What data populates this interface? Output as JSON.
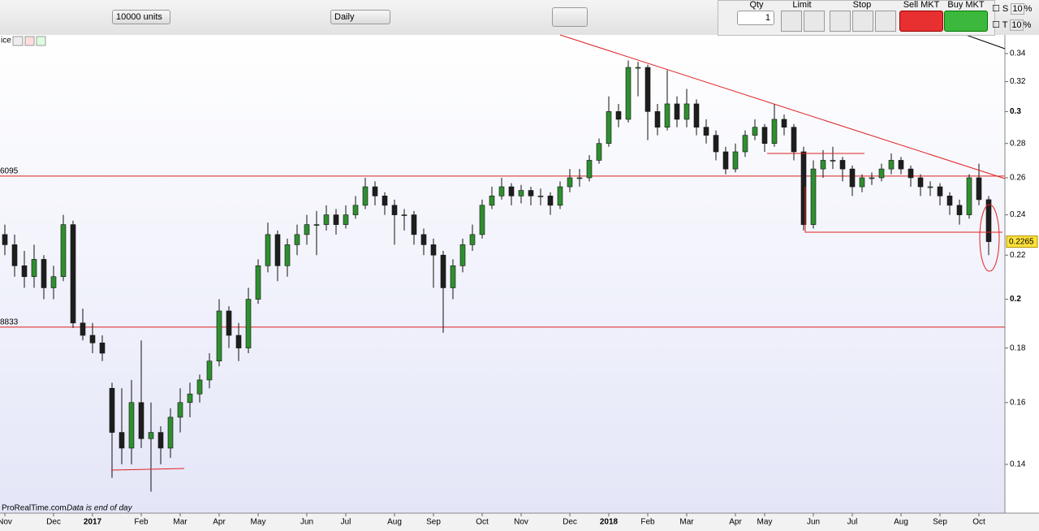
{
  "toolbar": {
    "units": "10000 units",
    "period": "Daily",
    "qty_label": "Qty",
    "qty": "1",
    "limit": "Limit",
    "stop": "Stop",
    "sell": "Sell MKT",
    "buy": "Buy MKT",
    "s": "S",
    "s_pct": "10",
    "t": "T",
    "t_pct": "10",
    "pct": "%",
    "left_title": "ice"
  },
  "footer": {
    "source": "ProRealTime.com",
    "note": "Data is end of day"
  },
  "chart_data": {
    "type": "candlestick",
    "log_scale": true,
    "grid": false,
    "up_color": "#2f8f2f",
    "down_color": "#1e1e1e",
    "ylim": [
      0.126,
      0.354
    ],
    "yticks": [
      0.14,
      0.16,
      0.18,
      0.2,
      0.22,
      0.24,
      0.26,
      0.28,
      0.3,
      0.32,
      0.34
    ],
    "hlines": [
      {
        "value": 0.26095,
        "label": "6095"
      },
      {
        "value": 0.18833,
        "label": "8833"
      }
    ],
    "categories": [
      "Nov",
      null,
      null,
      null,
      null,
      "Dec",
      null,
      null,
      null,
      "2017",
      null,
      null,
      null,
      null,
      "Feb",
      null,
      null,
      null,
      "Mar",
      null,
      null,
      null,
      "Apr",
      null,
      null,
      null,
      "May",
      null,
      null,
      null,
      null,
      "Jun",
      null,
      null,
      null,
      "Jul",
      null,
      null,
      null,
      null,
      "Aug",
      null,
      null,
      null,
      "Sep",
      null,
      null,
      null,
      null,
      "Oct",
      null,
      null,
      null,
      "Nov",
      null,
      null,
      null,
      null,
      "Dec",
      null,
      null,
      null,
      "2018",
      null,
      null,
      null,
      "Feb",
      null,
      null,
      null,
      "Mar",
      null,
      null,
      null,
      null,
      "Apr",
      null,
      null,
      "May",
      null,
      null,
      null,
      null,
      "Jun",
      null,
      null,
      null,
      "Jul",
      null,
      null,
      null,
      null,
      "Aug",
      null,
      null,
      null,
      "Sep",
      null,
      null,
      null,
      "Oct",
      null
    ],
    "candles": [
      [
        0.23,
        0.235,
        0.22,
        0.225
      ],
      [
        0.225,
        0.23,
        0.21,
        0.215
      ],
      [
        0.215,
        0.222,
        0.205,
        0.21
      ],
      [
        0.21,
        0.225,
        0.205,
        0.218
      ],
      [
        0.218,
        0.22,
        0.2,
        0.205
      ],
      [
        0.205,
        0.215,
        0.2,
        0.21
      ],
      [
        0.21,
        0.24,
        0.208,
        0.235
      ],
      [
        0.235,
        0.237,
        0.188,
        0.19
      ],
      [
        0.19,
        0.196,
        0.183,
        0.185
      ],
      [
        0.185,
        0.19,
        0.178,
        0.182
      ],
      [
        0.182,
        0.185,
        0.175,
        0.178
      ],
      [
        0.165,
        0.167,
        0.136,
        0.15
      ],
      [
        0.15,
        0.165,
        0.14,
        0.145
      ],
      [
        0.145,
        0.168,
        0.14,
        0.16
      ],
      [
        0.16,
        0.183,
        0.145,
        0.148
      ],
      [
        0.148,
        0.16,
        0.132,
        0.15
      ],
      [
        0.15,
        0.152,
        0.14,
        0.145
      ],
      [
        0.145,
        0.158,
        0.142,
        0.155
      ],
      [
        0.155,
        0.165,
        0.15,
        0.16
      ],
      [
        0.16,
        0.167,
        0.155,
        0.163
      ],
      [
        0.163,
        0.17,
        0.16,
        0.168
      ],
      [
        0.168,
        0.178,
        0.165,
        0.175
      ],
      [
        0.175,
        0.2,
        0.173,
        0.195
      ],
      [
        0.195,
        0.197,
        0.18,
        0.185
      ],
      [
        0.185,
        0.19,
        0.175,
        0.18
      ],
      [
        0.18,
        0.205,
        0.178,
        0.2
      ],
      [
        0.2,
        0.218,
        0.198,
        0.215
      ],
      [
        0.215,
        0.236,
        0.212,
        0.23
      ],
      [
        0.23,
        0.232,
        0.208,
        0.215
      ],
      [
        0.215,
        0.228,
        0.21,
        0.225
      ],
      [
        0.225,
        0.235,
        0.22,
        0.23
      ],
      [
        0.23,
        0.24,
        0.225,
        0.235
      ],
      [
        0.235,
        0.242,
        0.22,
        0.235
      ],
      [
        0.235,
        0.245,
        0.232,
        0.24
      ],
      [
        0.24,
        0.243,
        0.23,
        0.235
      ],
      [
        0.235,
        0.245,
        0.233,
        0.24
      ],
      [
        0.24,
        0.25,
        0.238,
        0.245
      ],
      [
        0.245,
        0.26,
        0.243,
        0.255
      ],
      [
        0.255,
        0.258,
        0.245,
        0.25
      ],
      [
        0.25,
        0.252,
        0.24,
        0.245
      ],
      [
        0.245,
        0.248,
        0.225,
        0.24
      ],
      [
        0.24,
        0.243,
        0.232,
        0.24
      ],
      [
        0.24,
        0.242,
        0.225,
        0.23
      ],
      [
        0.23,
        0.233,
        0.22,
        0.225
      ],
      [
        0.225,
        0.228,
        0.205,
        0.22
      ],
      [
        0.22,
        0.222,
        0.186,
        0.205
      ],
      [
        0.205,
        0.218,
        0.2,
        0.215
      ],
      [
        0.215,
        0.228,
        0.212,
        0.225
      ],
      [
        0.225,
        0.235,
        0.222,
        0.23
      ],
      [
        0.23,
        0.248,
        0.228,
        0.245
      ],
      [
        0.245,
        0.255,
        0.243,
        0.25
      ],
      [
        0.25,
        0.26,
        0.248,
        0.255
      ],
      [
        0.255,
        0.257,
        0.245,
        0.25
      ],
      [
        0.25,
        0.256,
        0.246,
        0.253
      ],
      [
        0.253,
        0.255,
        0.245,
        0.25
      ],
      [
        0.25,
        0.254,
        0.245,
        0.25
      ],
      [
        0.25,
        0.252,
        0.24,
        0.245
      ],
      [
        0.245,
        0.258,
        0.243,
        0.255
      ],
      [
        0.255,
        0.265,
        0.252,
        0.26
      ],
      [
        0.26,
        0.265,
        0.255,
        0.26
      ],
      [
        0.26,
        0.273,
        0.258,
        0.27
      ],
      [
        0.27,
        0.283,
        0.268,
        0.28
      ],
      [
        0.28,
        0.31,
        0.278,
        0.3
      ],
      [
        0.3,
        0.305,
        0.29,
        0.295
      ],
      [
        0.295,
        0.335,
        0.293,
        0.33
      ],
      [
        0.33,
        0.334,
        0.31,
        0.33
      ],
      [
        0.33,
        0.332,
        0.282,
        0.3
      ],
      [
        0.3,
        0.305,
        0.285,
        0.29
      ],
      [
        0.29,
        0.328,
        0.288,
        0.305
      ],
      [
        0.305,
        0.31,
        0.29,
        0.295
      ],
      [
        0.295,
        0.315,
        0.29,
        0.305
      ],
      [
        0.305,
        0.308,
        0.285,
        0.29
      ],
      [
        0.29,
        0.295,
        0.28,
        0.285
      ],
      [
        0.285,
        0.288,
        0.27,
        0.275
      ],
      [
        0.275,
        0.278,
        0.262,
        0.265
      ],
      [
        0.265,
        0.28,
        0.263,
        0.275
      ],
      [
        0.275,
        0.288,
        0.272,
        0.285
      ],
      [
        0.285,
        0.295,
        0.282,
        0.29
      ],
      [
        0.29,
        0.292,
        0.275,
        0.28
      ],
      [
        0.28,
        0.305,
        0.278,
        0.295
      ],
      [
        0.295,
        0.298,
        0.285,
        0.29
      ],
      [
        0.29,
        0.292,
        0.27,
        0.275
      ],
      [
        0.275,
        0.278,
        0.232,
        0.235
      ],
      [
        0.235,
        0.27,
        0.233,
        0.265
      ],
      [
        0.265,
        0.276,
        0.26,
        0.27
      ],
      [
        0.27,
        0.278,
        0.265,
        0.27
      ],
      [
        0.27,
        0.272,
        0.258,
        0.265
      ],
      [
        0.265,
        0.267,
        0.25,
        0.255
      ],
      [
        0.255,
        0.262,
        0.252,
        0.26
      ],
      [
        0.26,
        0.263,
        0.256,
        0.26
      ],
      [
        0.26,
        0.268,
        0.258,
        0.265
      ],
      [
        0.265,
        0.274,
        0.262,
        0.27
      ],
      [
        0.27,
        0.272,
        0.262,
        0.265
      ],
      [
        0.265,
        0.267,
        0.255,
        0.26
      ],
      [
        0.26,
        0.262,
        0.25,
        0.255
      ],
      [
        0.255,
        0.258,
        0.25,
        0.255
      ],
      [
        0.255,
        0.257,
        0.245,
        0.25
      ],
      [
        0.25,
        0.252,
        0.24,
        0.245
      ],
      [
        0.245,
        0.248,
        0.235,
        0.24
      ],
      [
        0.24,
        0.262,
        0.238,
        0.26
      ],
      [
        0.26,
        0.268,
        0.245,
        0.248
      ],
      [
        0.248,
        0.25,
        0.22,
        0.2265
      ]
    ]
  }
}
